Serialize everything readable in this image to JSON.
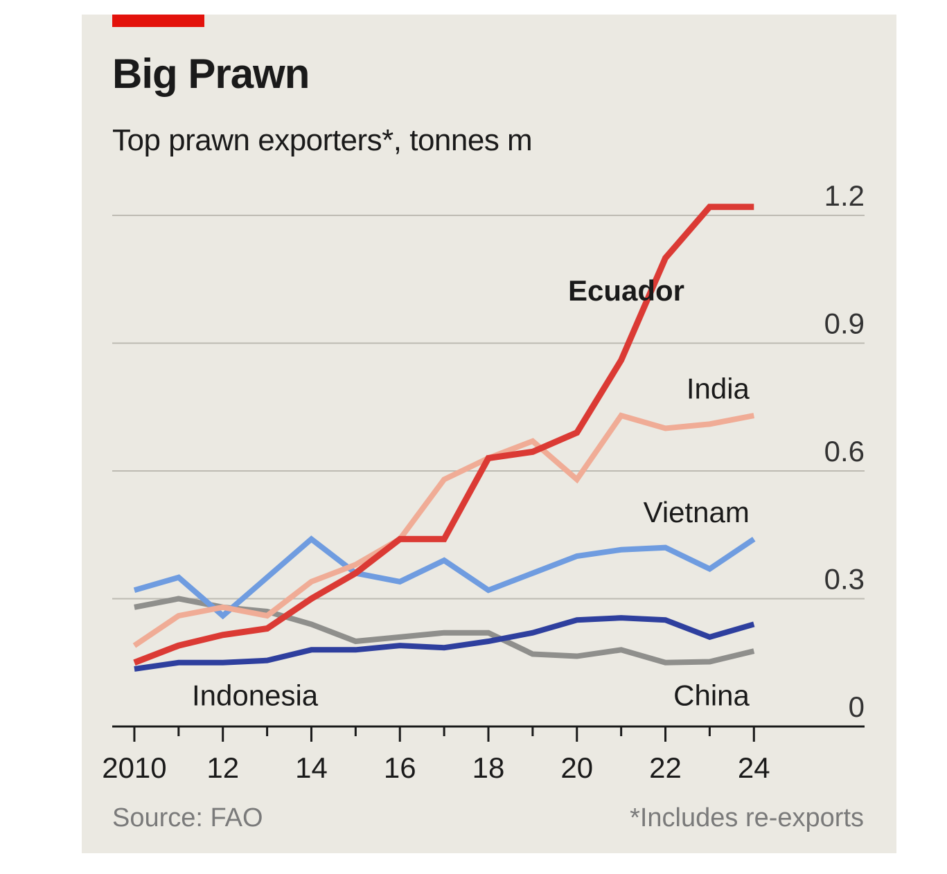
{
  "title": "Big Prawn",
  "subtitle": "Top prawn exporters*, tonnes m",
  "source": "Source: FAO",
  "footnote": "*Includes re-exports",
  "colors": {
    "background": "#ebe9e2",
    "accent": "#e3120b",
    "Ecuador": "#db3a34",
    "India": "#f0ac96",
    "Vietnam": "#6f9ce0",
    "China": "#8f8f8c",
    "Indonesia": "#2e3f9e",
    "grid": "#bdbab2",
    "text": "#1a1a1a"
  },
  "chart_data": {
    "type": "line",
    "x": [
      2010,
      2011,
      2012,
      2013,
      2014,
      2015,
      2016,
      2017,
      2018,
      2019,
      2020,
      2021,
      2022,
      2023,
      2024
    ],
    "xlim": [
      2009.5,
      2026.5
    ],
    "x_ticks": [
      2010,
      2012,
      2014,
      2016,
      2018,
      2020,
      2022,
      2024
    ],
    "x_tick_labels": [
      "2010",
      "12",
      "14",
      "16",
      "18",
      "20",
      "22",
      "24"
    ],
    "ylim": [
      0,
      1.2
    ],
    "y_ticks": [
      0,
      0.3,
      0.6,
      0.9,
      1.2
    ],
    "y_tick_labels": [
      "0",
      "0.3",
      "0.6",
      "0.9",
      "1.2"
    ],
    "grid": true,
    "series": [
      {
        "name": "China",
        "values": [
          0.28,
          0.3,
          0.28,
          0.27,
          0.24,
          0.2,
          0.21,
          0.22,
          0.22,
          0.17,
          0.165,
          0.18,
          0.15,
          0.152,
          0.177
        ]
      },
      {
        "name": "Vietnam",
        "values": [
          0.32,
          0.35,
          0.26,
          0.35,
          0.44,
          0.36,
          0.34,
          0.39,
          0.32,
          0.36,
          0.4,
          0.415,
          0.42,
          0.37,
          0.44
        ]
      },
      {
        "name": "India",
        "values": [
          0.19,
          0.26,
          0.28,
          0.26,
          0.34,
          0.38,
          0.44,
          0.58,
          0.63,
          0.67,
          0.58,
          0.73,
          0.7,
          0.71,
          0.73
        ]
      },
      {
        "name": "Indonesia",
        "values": [
          0.135,
          0.15,
          0.15,
          0.155,
          0.18,
          0.18,
          0.19,
          0.185,
          0.2,
          0.22,
          0.25,
          0.255,
          0.25,
          0.21,
          0.24
        ]
      },
      {
        "name": "Ecuador",
        "values": [
          0.15,
          0.19,
          0.215,
          0.23,
          0.3,
          0.36,
          0.44,
          0.44,
          0.63,
          0.645,
          0.69,
          0.86,
          1.1,
          1.22,
          1.22
        ]
      }
    ],
    "labels": [
      {
        "series": "Ecuador",
        "text": "Ecuador",
        "x": 2019.8,
        "y": 1.0,
        "bold": true
      },
      {
        "series": "India",
        "text": "India",
        "x": 2023.9,
        "y": 0.77,
        "bold": false
      },
      {
        "series": "Vietnam",
        "text": "Vietnam",
        "x": 2023.9,
        "y": 0.48,
        "bold": false
      },
      {
        "series": "Indonesia",
        "text": "Indonesia",
        "x": 2011.3,
        "y": 0.05,
        "bold": false
      },
      {
        "series": "China",
        "text": "China",
        "x": 2023.9,
        "y": 0.05,
        "bold": false
      }
    ]
  }
}
